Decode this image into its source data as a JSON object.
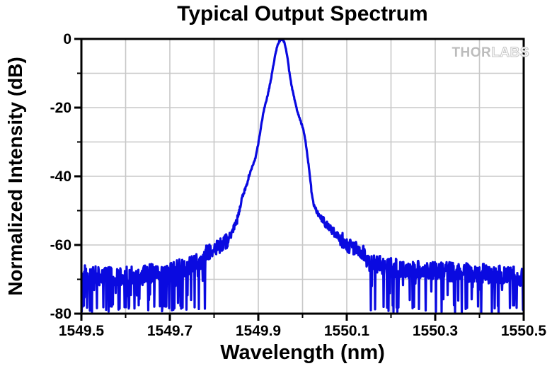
{
  "watermark": {
    "thor": "THOR",
    "labs": "LABS"
  },
  "chart_data": {
    "type": "line",
    "title": "Typical Output Spectrum",
    "xlabel": "Wavelength (nm)",
    "ylabel": "Normalized Intensity (dB)",
    "xlim": [
      1549.5,
      1550.5
    ],
    "ylim": [
      -80,
      0
    ],
    "x_major_ticks": [
      1549.5,
      1549.7,
      1549.9,
      1550.1,
      1550.3,
      1550.5
    ],
    "x_tick_labels": [
      "1549.5",
      "1549.7",
      "1549.9",
      "1550.1",
      "1550.3",
      "1550.5"
    ],
    "x_minor_ticks": [
      1549.6,
      1549.8,
      1550.0,
      1550.2,
      1550.4
    ],
    "y_major_ticks": [
      0,
      -20,
      -40,
      -60,
      -80
    ],
    "y_tick_labels": [
      "0",
      "-20",
      "-40",
      "-60",
      "-80"
    ],
    "y_minor_ticks": [
      -10,
      -30,
      -50,
      -70
    ],
    "grid": "light gray gridlines at every major and minor tick position",
    "legend": "none",
    "line_color": "#0a0ae0",
    "grid_color": "#c8c8c8",
    "axis_color": "#000000",
    "background_color": "#ffffff",
    "watermark_color": "#bcbcbc",
    "peak": {
      "wavelength_nm": 1549.95,
      "intensity_db": 0
    },
    "noise_floor_db": -67,
    "series": [
      {
        "name": "Typical output spectrum",
        "envelope_points": [
          [
            1549.5,
            -67.0
          ],
          [
            1549.56,
            -67.5
          ],
          [
            1549.64,
            -67.0
          ],
          [
            1549.7,
            -66.0
          ],
          [
            1549.716,
            -65.5
          ],
          [
            1549.748,
            -64.5
          ],
          [
            1549.78,
            -62.5
          ],
          [
            1549.796,
            -61.5
          ],
          [
            1549.815,
            -60.2
          ],
          [
            1549.831,
            -58.5
          ],
          [
            1549.844,
            -55.5
          ],
          [
            1549.852,
            -53.0
          ],
          [
            1549.863,
            -46.5
          ],
          [
            1549.873,
            -42.5
          ],
          [
            1549.884,
            -38.0
          ],
          [
            1549.894,
            -34.5
          ],
          [
            1549.902,
            -29.0
          ],
          [
            1549.908,
            -24.0
          ],
          [
            1549.913,
            -20.5
          ],
          [
            1549.918,
            -18.0
          ],
          [
            1549.922,
            -16.0
          ],
          [
            1549.929,
            -11.5
          ],
          [
            1549.935,
            -7.0
          ],
          [
            1549.94,
            -3.5
          ],
          [
            1549.945,
            -1.3
          ],
          [
            1549.95,
            -0.2
          ],
          [
            1549.954,
            -0.1
          ],
          [
            1549.958,
            -0.7
          ],
          [
            1549.962,
            -2.5
          ],
          [
            1549.966,
            -5.5
          ],
          [
            1549.97,
            -9.5
          ],
          [
            1549.975,
            -13.5
          ],
          [
            1549.98,
            -16.5
          ],
          [
            1549.985,
            -19.5
          ],
          [
            1549.993,
            -23.0
          ],
          [
            1550.001,
            -26.0
          ],
          [
            1550.007,
            -30.0
          ],
          [
            1550.014,
            -37.0
          ],
          [
            1550.02,
            -44.0
          ],
          [
            1550.025,
            -48.0
          ],
          [
            1550.033,
            -50.5
          ],
          [
            1550.047,
            -53.0
          ],
          [
            1550.073,
            -56.5
          ],
          [
            1550.1,
            -59.8
          ],
          [
            1550.127,
            -61.5
          ],
          [
            1550.164,
            -63.9
          ],
          [
            1550.2,
            -64.9
          ],
          [
            1550.244,
            -65.5
          ],
          [
            1550.31,
            -66.0
          ],
          [
            1550.4,
            -66.5
          ],
          [
            1550.5,
            -67.5
          ]
        ],
        "noise": {
          "noisy_when_below_db": -62.5,
          "band_above_db": 1.2,
          "band_below_db": 4.5,
          "left_deep_spike_rate": 0.085,
          "right_deep_spike_rate": 0.05,
          "left_mid_spike_rate": 0.1,
          "right_mid_spike_rate": 0.06,
          "deep_spike_floor_db": -80
        }
      }
    ]
  }
}
